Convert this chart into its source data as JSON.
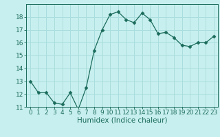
{
  "title": "",
  "xlabel": "Humidex (Indice chaleur)",
  "x": [
    0,
    1,
    2,
    3,
    4,
    5,
    6,
    7,
    8,
    9,
    10,
    11,
    12,
    13,
    14,
    15,
    16,
    17,
    18,
    19,
    20,
    21,
    22,
    23
  ],
  "y": [
    13.0,
    12.1,
    12.1,
    11.3,
    11.2,
    12.1,
    10.8,
    12.5,
    15.4,
    17.0,
    18.2,
    18.4,
    17.8,
    17.55,
    18.3,
    17.8,
    16.7,
    16.8,
    16.4,
    15.8,
    15.7,
    16.0,
    16.0,
    16.5
  ],
  "line_color": "#1a6b5a",
  "marker": "D",
  "marker_size": 2.5,
  "bg_color": "#c8efef",
  "grid_color": "#aadddd",
  "ylim": [
    11,
    19
  ],
  "yticks": [
    11,
    12,
    13,
    14,
    15,
    16,
    17,
    18
  ],
  "xlim": [
    -0.5,
    23.5
  ],
  "xticks": [
    0,
    1,
    2,
    3,
    4,
    5,
    6,
    7,
    8,
    9,
    10,
    11,
    12,
    13,
    14,
    15,
    16,
    17,
    18,
    19,
    20,
    21,
    22,
    23
  ],
  "tick_fontsize": 6.5,
  "xlabel_fontsize": 7.5
}
